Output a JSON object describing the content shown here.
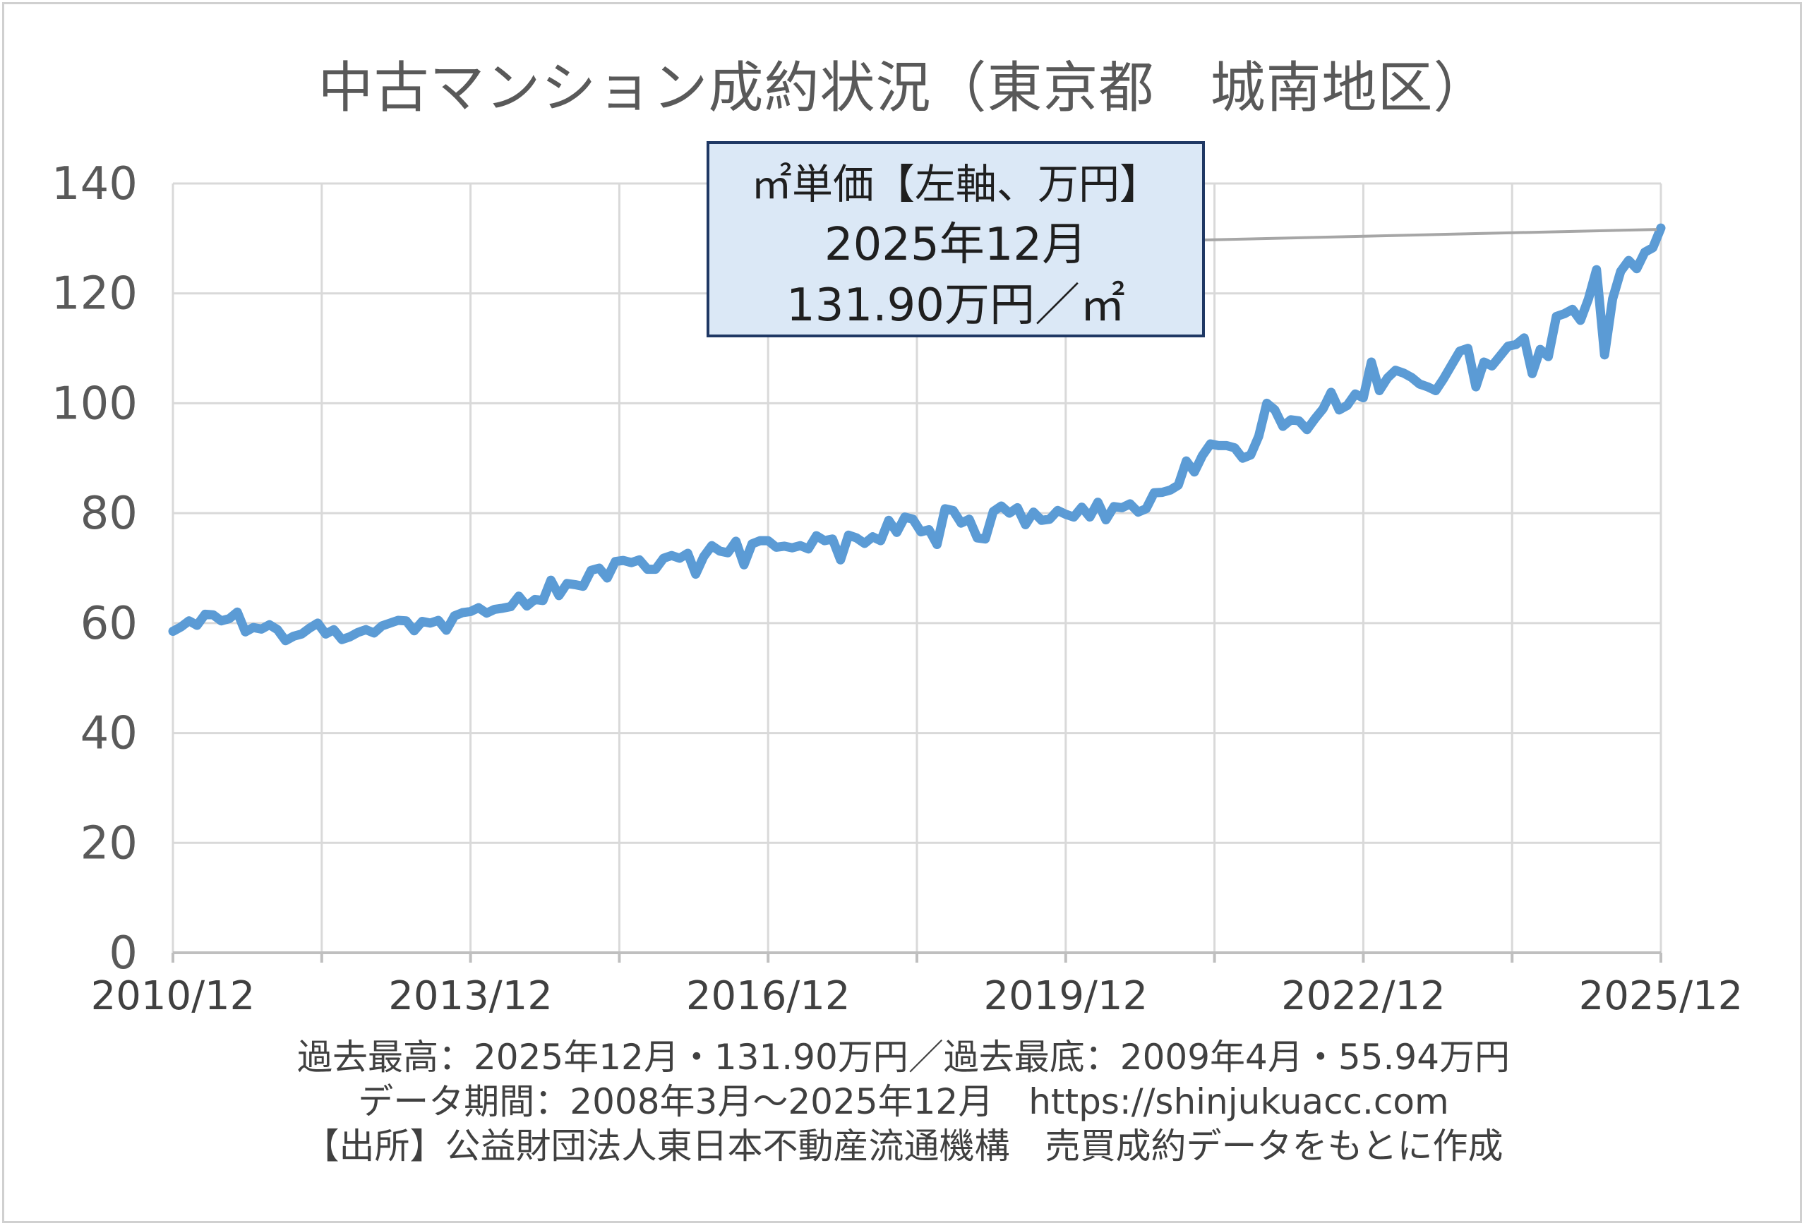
{
  "chart_data": {
    "type": "line",
    "title": "中古マンション成約状況（東京都　城南地区）",
    "y_ticks": [
      "0",
      "20",
      "40",
      "60",
      "80",
      "100",
      "120",
      "140"
    ],
    "ylim": [
      0,
      140
    ],
    "x_tick_labels": [
      "2010/12",
      "2013/12",
      "2016/12",
      "2019/12",
      "2022/12",
      "2025/12"
    ],
    "grid": true,
    "line_color": "#5b9bd5",
    "series": [
      {
        "x_start": "2010/12",
        "x_end": "2025/12",
        "frequency": "monthly",
        "values": [
          58.5,
          59.3,
          60.4,
          59.6,
          61.6,
          61.5,
          60.4,
          60.8,
          62.0,
          58.4,
          59.2,
          58.9,
          59.7,
          58.8,
          56.8,
          57.6,
          58.0,
          59.1,
          60.0,
          58.0,
          58.8,
          57.0,
          57.5,
          58.3,
          58.8,
          58.2,
          59.5,
          60.0,
          60.5,
          60.4,
          58.6,
          60.3,
          60.0,
          60.5,
          58.7,
          61.3,
          61.9,
          62.1,
          62.8,
          61.8,
          62.5,
          62.7,
          63.0,
          64.9,
          63.1,
          64.3,
          64.1,
          67.8,
          65.0,
          67.2,
          67.0,
          66.7,
          69.6,
          70.0,
          68.2,
          71.2,
          71.4,
          71.0,
          71.5,
          69.8,
          69.8,
          71.8,
          72.3,
          71.8,
          72.7,
          68.9,
          72.1,
          74.1,
          73.1,
          72.8,
          74.9,
          70.6,
          74.4,
          75.0,
          75.0,
          73.8,
          74.0,
          73.7,
          74.1,
          73.5,
          75.9,
          75.0,
          75.3,
          71.5,
          76.0,
          75.5,
          74.5,
          75.7,
          75.0,
          78.7,
          76.5,
          79.3,
          78.9,
          76.6,
          77.0,
          74.3,
          80.8,
          80.5,
          78.2,
          78.9,
          75.5,
          75.3,
          80.3,
          81.3,
          80.0,
          81.0,
          77.9,
          80.2,
          78.7,
          78.9,
          80.5,
          79.8,
          79.3,
          81.1,
          79.3,
          82.0,
          78.8,
          81.2,
          81.0,
          81.7,
          80.2,
          80.8,
          83.7,
          83.8,
          84.2,
          85.1,
          89.5,
          87.5,
          90.5,
          92.6,
          92.3,
          92.3,
          91.9,
          90.0,
          90.6,
          94.0,
          100.0,
          98.8,
          95.8,
          97.0,
          96.8,
          95.2,
          97.2,
          99.0,
          102.0,
          98.8,
          99.6,
          101.7,
          101.0,
          107.5,
          102.3,
          104.6,
          106.0,
          105.5,
          104.7,
          103.5,
          103.0,
          102.3,
          104.5,
          107.0,
          109.5,
          110.0,
          103.0,
          107.5,
          106.8,
          108.6,
          110.4,
          110.7,
          111.9,
          105.4,
          109.8,
          108.5,
          115.8,
          116.3,
          117.1,
          115.1,
          119.0,
          124.3,
          108.8,
          119.0,
          124.0,
          126.0,
          124.5,
          127.5,
          128.3,
          131.9
        ]
      }
    ],
    "callout": {
      "line1": "㎡単価【左軸、万円】",
      "line2": "2025年12月",
      "line3": "131.90万円／㎡"
    }
  },
  "footer": {
    "line1": "過去最高：2025年12月・131.90万円／過去最底：2009年4月・55.94万円",
    "line2": "データ期間：2008年3月～2025年12月　https://shinjukuacc.com",
    "line3": "【出所】公益財団法人東日本不動産流通機構　売買成約データをもとに作成"
  }
}
